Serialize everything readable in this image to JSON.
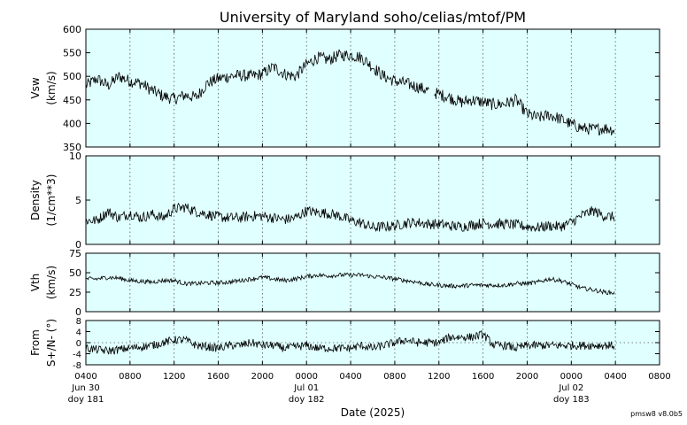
{
  "chart_data": {
    "type": "line",
    "title": "University of Maryland  soho/celias/mtof/PM",
    "xlabel": "Date (2025)",
    "version": "pmsw8 v8.0b5",
    "background_color": "#e0ffff",
    "line_color": "#000000",
    "grid": "dotted vertical",
    "x_hours_range": [
      0,
      52
    ],
    "x_ticks": [
      {
        "h": 0,
        "label": "0400"
      },
      {
        "h": 4,
        "label": "0800"
      },
      {
        "h": 8,
        "label": "1200"
      },
      {
        "h": 12,
        "label": "1600"
      },
      {
        "h": 16,
        "label": "2000"
      },
      {
        "h": 20,
        "label": "0000"
      },
      {
        "h": 24,
        "label": "0400"
      },
      {
        "h": 28,
        "label": "0800"
      },
      {
        "h": 32,
        "label": "1200"
      },
      {
        "h": 36,
        "label": "1600"
      },
      {
        "h": 40,
        "label": "2000"
      },
      {
        "h": 44,
        "label": "0000"
      },
      {
        "h": 48,
        "label": "0400"
      },
      {
        "h": 52,
        "label": "0800"
      }
    ],
    "date_labels": [
      {
        "h": 0,
        "date": "Jun 30",
        "doy": "doy 181"
      },
      {
        "h": 20,
        "date": "Jul 01",
        "doy": "doy 182"
      },
      {
        "h": 44,
        "date": "Jul 02",
        "doy": "doy 183"
      }
    ],
    "panels": [
      {
        "name": "Vsw",
        "ylabel1": "Vsw",
        "ylabel2": "(km/s)",
        "ylim": [
          350,
          600
        ],
        "yticks": [
          "350",
          "400",
          "450",
          "500",
          "550",
          "600"
        ],
        "ytick_values": [
          350,
          400,
          450,
          500,
          550,
          600
        ],
        "zero_line": false,
        "noise": 13,
        "knots": [
          [
            0,
            480
          ],
          [
            1,
            495
          ],
          [
            2,
            480
          ],
          [
            3,
            500
          ],
          [
            4,
            490
          ],
          [
            5,
            485
          ],
          [
            6,
            470
          ],
          [
            7,
            458
          ],
          [
            8,
            452
          ],
          [
            9,
            460
          ],
          [
            10,
            455
          ],
          [
            11,
            485
          ],
          [
            12,
            495
          ],
          [
            13,
            500
          ],
          [
            14,
            502
          ],
          [
            15,
            500
          ],
          [
            16,
            505
          ],
          [
            17,
            520
          ],
          [
            18,
            505
          ],
          [
            19,
            500
          ],
          [
            20,
            525
          ],
          [
            21,
            540
          ],
          [
            22,
            535
          ],
          [
            23,
            545
          ],
          [
            24,
            545
          ],
          [
            25,
            540
          ],
          [
            26,
            520
          ],
          [
            27,
            500
          ],
          [
            28,
            490
          ],
          [
            29,
            485
          ],
          [
            30,
            478
          ],
          [
            31,
            470
          ],
          [
            32,
            462
          ],
          [
            33,
            455
          ],
          [
            34,
            445
          ],
          [
            35,
            450
          ],
          [
            36,
            445
          ],
          [
            37,
            440
          ],
          [
            38,
            442
          ],
          [
            39,
            450
          ],
          [
            40,
            420
          ],
          [
            41,
            412
          ],
          [
            42,
            418
          ],
          [
            43,
            410
          ],
          [
            44,
            398
          ],
          [
            45,
            390
          ],
          [
            46,
            387
          ],
          [
            47,
            390
          ],
          [
            47.9,
            386
          ]
        ]
      },
      {
        "name": "Density",
        "ylabel1": "Density",
        "ylabel2": "(1/cm**3)",
        "ylim": [
          0,
          10
        ],
        "yticks": [
          "0",
          "5",
          "10"
        ],
        "ytick_values": [
          0,
          5,
          10
        ],
        "zero_line": false,
        "noise": 0.6,
        "knots": [
          [
            0,
            2.7
          ],
          [
            1,
            2.7
          ],
          [
            2,
            3.7
          ],
          [
            3,
            3.0
          ],
          [
            4,
            3.5
          ],
          [
            5,
            3.0
          ],
          [
            6,
            3.4
          ],
          [
            7,
            3.0
          ],
          [
            8,
            4.0
          ],
          [
            9,
            4.2
          ],
          [
            10,
            3.7
          ],
          [
            11,
            3.4
          ],
          [
            12,
            3.1
          ],
          [
            13,
            3.0
          ],
          [
            14,
            3.0
          ],
          [
            15,
            3.2
          ],
          [
            16,
            3.2
          ],
          [
            17,
            3.0
          ],
          [
            18,
            2.8
          ],
          [
            19,
            3.0
          ],
          [
            20,
            3.8
          ],
          [
            21,
            3.6
          ],
          [
            22,
            3.5
          ],
          [
            23,
            3.2
          ],
          [
            24,
            2.7
          ],
          [
            25,
            2.4
          ],
          [
            26,
            1.9
          ],
          [
            27,
            2.0
          ],
          [
            28,
            2.1
          ],
          [
            29,
            2.4
          ],
          [
            30,
            2.5
          ],
          [
            31,
            2.3
          ],
          [
            32,
            2.3
          ],
          [
            33,
            2.1
          ],
          [
            34,
            2.0
          ],
          [
            35,
            2.2
          ],
          [
            36,
            2.4
          ],
          [
            37,
            2.3
          ],
          [
            38,
            2.3
          ],
          [
            39,
            2.2
          ],
          [
            40,
            2.0
          ],
          [
            41,
            1.9
          ],
          [
            42,
            2.1
          ],
          [
            43,
            2.0
          ],
          [
            44,
            2.5
          ],
          [
            45,
            3.3
          ],
          [
            46,
            3.8
          ],
          [
            47,
            3.2
          ],
          [
            47.9,
            3.1
          ]
        ]
      },
      {
        "name": "Vth",
        "ylabel1": "Vth",
        "ylabel2": "(km/s)",
        "ylim": [
          0,
          75
        ],
        "yticks": [
          "0",
          "25",
          "50",
          "75"
        ],
        "ytick_values": [
          0,
          25,
          50,
          75
        ],
        "zero_line": false,
        "noise": 2.8,
        "knots": [
          [
            0,
            42
          ],
          [
            1,
            42
          ],
          [
            2,
            44
          ],
          [
            3,
            43
          ],
          [
            4,
            40
          ],
          [
            5,
            39
          ],
          [
            6,
            38
          ],
          [
            7,
            40
          ],
          [
            8,
            40
          ],
          [
            9,
            36
          ],
          [
            10,
            36
          ],
          [
            11,
            37
          ],
          [
            12,
            37
          ],
          [
            13,
            38
          ],
          [
            14,
            40
          ],
          [
            15,
            42
          ],
          [
            16,
            44
          ],
          [
            17,
            42
          ],
          [
            18,
            40
          ],
          [
            19,
            42
          ],
          [
            20,
            45
          ],
          [
            21,
            47
          ],
          [
            22,
            46
          ],
          [
            23,
            47
          ],
          [
            24,
            47
          ],
          [
            25,
            47
          ],
          [
            26,
            45
          ],
          [
            27,
            44
          ],
          [
            28,
            42
          ],
          [
            29,
            40
          ],
          [
            30,
            38
          ],
          [
            31,
            35
          ],
          [
            32,
            34
          ],
          [
            33,
            33
          ],
          [
            34,
            33
          ],
          [
            35,
            34
          ],
          [
            36,
            34
          ],
          [
            37,
            34
          ],
          [
            38,
            34
          ],
          [
            39,
            36
          ],
          [
            40,
            36
          ],
          [
            41,
            38
          ],
          [
            42,
            42
          ],
          [
            43,
            40
          ],
          [
            44,
            35
          ],
          [
            45,
            30
          ],
          [
            46,
            28
          ],
          [
            47,
            25
          ],
          [
            47.9,
            24
          ]
        ]
      },
      {
        "name": "From",
        "ylabel1": "From",
        "ylabel2": "S+/N- (°)",
        "ylim": [
          -8,
          8
        ],
        "yticks": [
          "-8",
          "-4",
          "0",
          "4",
          "8"
        ],
        "ytick_values": [
          -8,
          -4,
          0,
          4,
          8
        ],
        "zero_line": true,
        "noise": 1.5,
        "knots": [
          [
            0,
            -2
          ],
          [
            2,
            -3
          ],
          [
            4,
            -2
          ],
          [
            6,
            -1
          ],
          [
            7,
            0
          ],
          [
            8,
            1
          ],
          [
            9,
            1
          ],
          [
            10,
            -1
          ],
          [
            12,
            -2
          ],
          [
            13,
            -1
          ],
          [
            14,
            -1
          ],
          [
            15,
            0
          ],
          [
            16,
            -1
          ],
          [
            17,
            -1
          ],
          [
            18,
            -2
          ],
          [
            20,
            -1
          ],
          [
            21,
            -2
          ],
          [
            22,
            -2
          ],
          [
            23,
            -2
          ],
          [
            24,
            -2
          ],
          [
            25,
            -1
          ],
          [
            26,
            -2
          ],
          [
            27,
            -1
          ],
          [
            28,
            0
          ],
          [
            29,
            1
          ],
          [
            30,
            0
          ],
          [
            31,
            0
          ],
          [
            32,
            0
          ],
          [
            33,
            2
          ],
          [
            34,
            2
          ],
          [
            35,
            2
          ],
          [
            36,
            3
          ],
          [
            37,
            -1
          ],
          [
            38,
            -1
          ],
          [
            39,
            -2
          ],
          [
            40,
            -1
          ],
          [
            42,
            -1
          ],
          [
            44,
            -1
          ],
          [
            46,
            -1
          ],
          [
            47.9,
            -1
          ]
        ]
      }
    ]
  }
}
